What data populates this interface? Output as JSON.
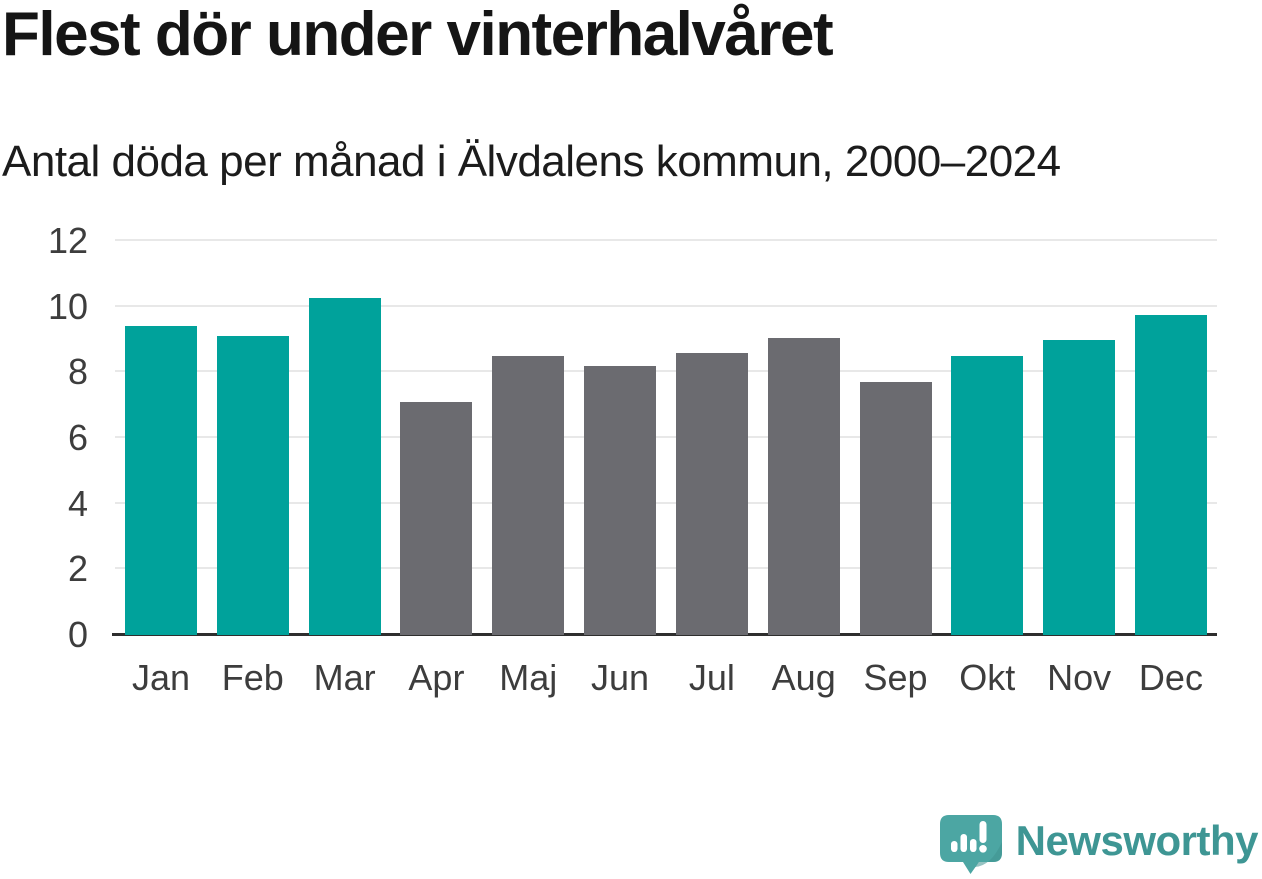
{
  "header": {
    "title": "Flest dör under vinterhalvåret",
    "subtitle": "Antal döda per månad i Älvdalens kommun, 2000–2024"
  },
  "chart_data": {
    "type": "bar",
    "title": "Flest dör under vinterhalvåret",
    "subtitle": "Antal döda per månad i Älvdalens kommun, 2000–2024",
    "xlabel": "",
    "ylabel": "",
    "categories": [
      "Jan",
      "Feb",
      "Mar",
      "Apr",
      "Maj",
      "Jun",
      "Jul",
      "Aug",
      "Sep",
      "Okt",
      "Nov",
      "Dec"
    ],
    "values": [
      9.4,
      9.1,
      10.25,
      7.1,
      8.5,
      8.2,
      8.6,
      9.05,
      7.7,
      8.5,
      9.0,
      9.75
    ],
    "highlighted": [
      true,
      true,
      true,
      false,
      false,
      false,
      false,
      false,
      false,
      true,
      true,
      true
    ],
    "colors": {
      "highlight": "#00a29b",
      "base": "#6b6b70",
      "gridline": "#e8e8e8",
      "axis_line": "#2e2e2e",
      "tick_text": "#3d3d3d"
    },
    "ylim": [
      0,
      12
    ],
    "yticks": [
      0,
      2,
      4,
      6,
      8,
      10,
      12
    ],
    "grid": true,
    "legend": "none"
  },
  "footer": {
    "brand": "Newsworthy",
    "logo_icon": "newsworthy-speech-bubble-bar-chart-icon",
    "brand_color": "#3e9694",
    "logo_bubble_color": "#4ca6a3"
  }
}
